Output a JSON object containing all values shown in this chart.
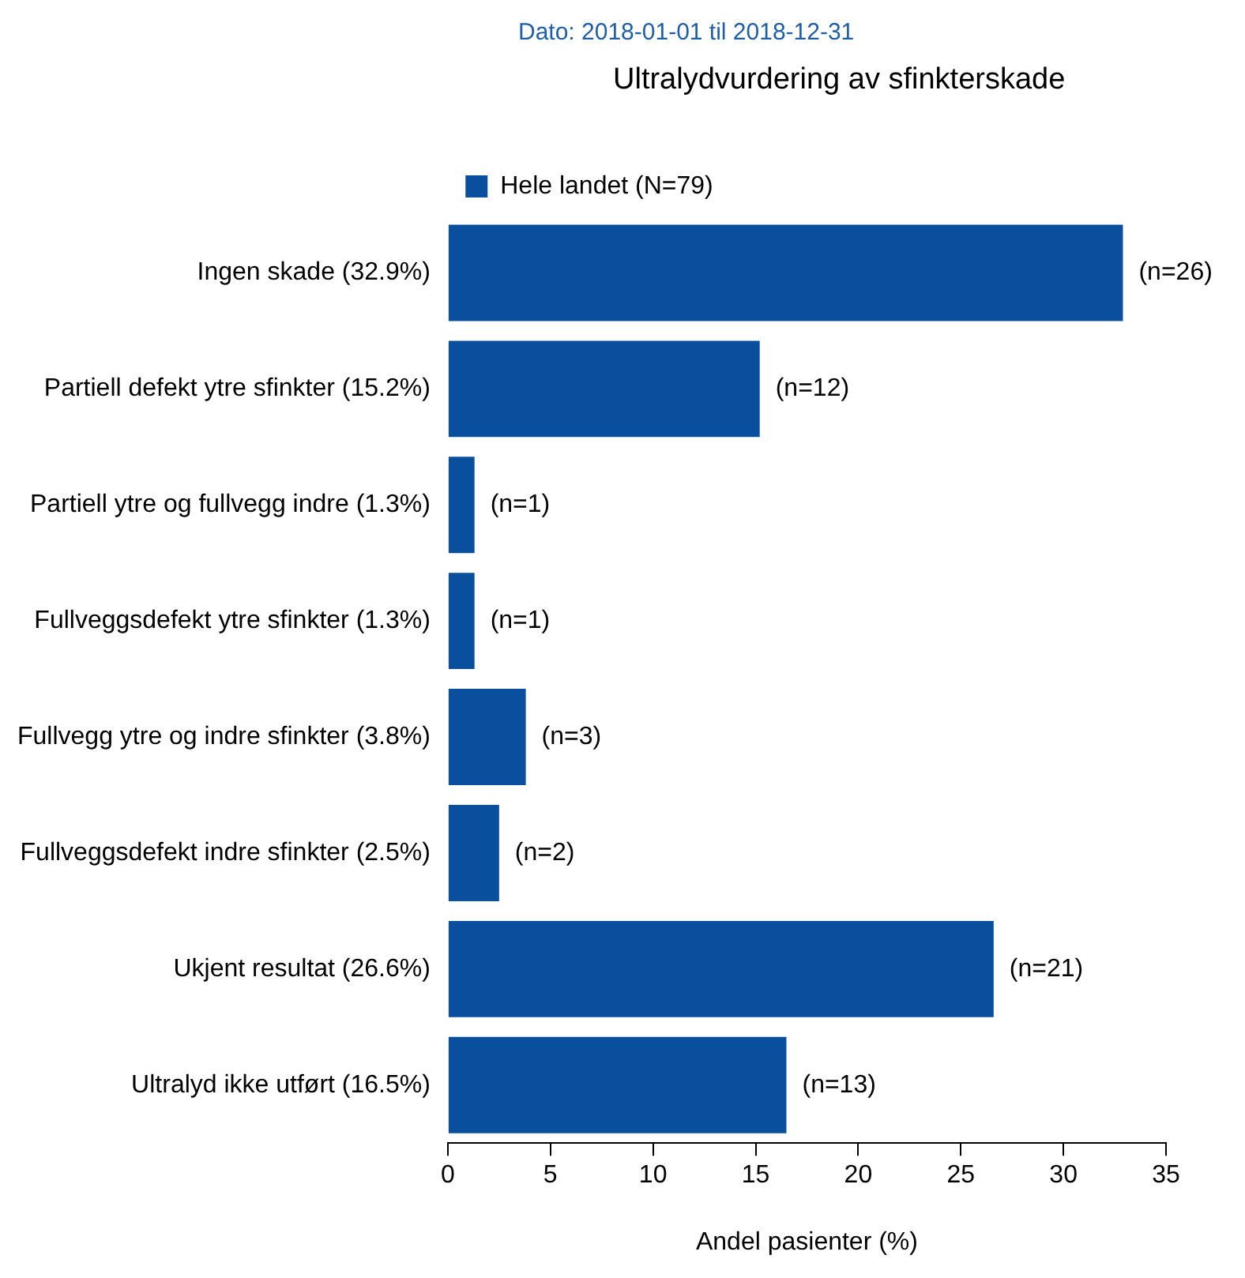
{
  "chart_data": {
    "type": "bar",
    "orientation": "horizontal",
    "subtitle": "Dato: 2018-01-01 til 2018-12-31",
    "title": "Ultralydvurdering av sfinkterskade",
    "xlabel": "Andel pasienter (%)",
    "categories": [
      "Ingen skade (32.9%)",
      "Partiell defekt ytre sfinkter (15.2%)",
      "Partiell ytre og fullvegg indre (1.3%)",
      "Fullveggsdefekt ytre sfinkter (1.3%)",
      "Fullvegg ytre og indre sfinkter (3.8%)",
      "Fullveggsdefekt indre sfinkter (2.5%)",
      "Ukjent resultat (26.6%)",
      "Ultralyd ikke utført (16.5%)"
    ],
    "series": [
      {
        "name": "Hele landet (N=79)",
        "color": "#0a4f9e",
        "values": [
          32.9,
          15.2,
          1.3,
          1.3,
          3.8,
          2.5,
          26.6,
          16.5
        ]
      }
    ],
    "annotations": [
      {
        "text": "(n=26)",
        "x": 32.9,
        "y": "Ingen skade (32.9%)"
      },
      {
        "text": "(n=12)",
        "x": 15.2,
        "y": "Partiell defekt ytre sfinkter (15.2%)"
      },
      {
        "text": "(n=1)",
        "x": 1.3,
        "y": "Partiell ytre og fullvegg indre (1.3%)"
      },
      {
        "text": "(n=1)",
        "x": 1.3,
        "y": "Fullveggsdefekt ytre sfinkter (1.3%)"
      },
      {
        "text": "(n=3)",
        "x": 3.8,
        "y": "Fullvegg ytre og indre sfinkter (3.8%)"
      },
      {
        "text": "(n=2)",
        "x": 2.5,
        "y": "Fullveggsdefekt indre sfinkter (2.5%)"
      },
      {
        "text": "(n=21)",
        "x": 26.6,
        "y": "Ukjent resultat (26.6%)"
      },
      {
        "text": "(n=13)",
        "x": 16.5,
        "y": "Ultralyd ikke utført (16.5%)"
      }
    ],
    "xlim": [
      0,
      35
    ],
    "xticks": [
      0,
      5,
      10,
      15,
      20,
      25,
      30,
      35
    ],
    "grid": false,
    "legend": "top"
  }
}
